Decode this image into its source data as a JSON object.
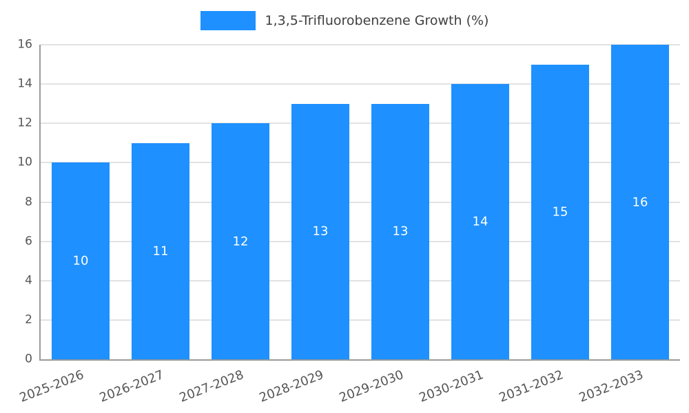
{
  "chart_data": {
    "type": "bar",
    "title": "1,3,5-Trifluorobenzene Growth (%)",
    "legend_position": "top",
    "categories": [
      "2025-2026",
      "2026-2027",
      "2027-2028",
      "2028-2029",
      "2029-2030",
      "2030-2031",
      "2031-2032",
      "2032-2033"
    ],
    "values": [
      10,
      11,
      12,
      13,
      13,
      14,
      15,
      16
    ],
    "value_labels": [
      "10",
      "11",
      "12",
      "13",
      "13",
      "14",
      "15",
      "16"
    ],
    "xlabel": "",
    "ylabel": "",
    "ylim": [
      0,
      16
    ],
    "yticks": [
      0,
      2,
      4,
      6,
      8,
      10,
      12,
      14,
      16
    ],
    "grid": "horizontal",
    "x_tick_rotation_deg": -21,
    "colors": {
      "bar": "#1e90ff",
      "grid": "#e2e2e2",
      "axis": "#9a9a9a",
      "tick_text": "#555555",
      "legend_text": "#3f3f3f",
      "value_label": "#ffffff",
      "background": "#ffffff"
    }
  }
}
